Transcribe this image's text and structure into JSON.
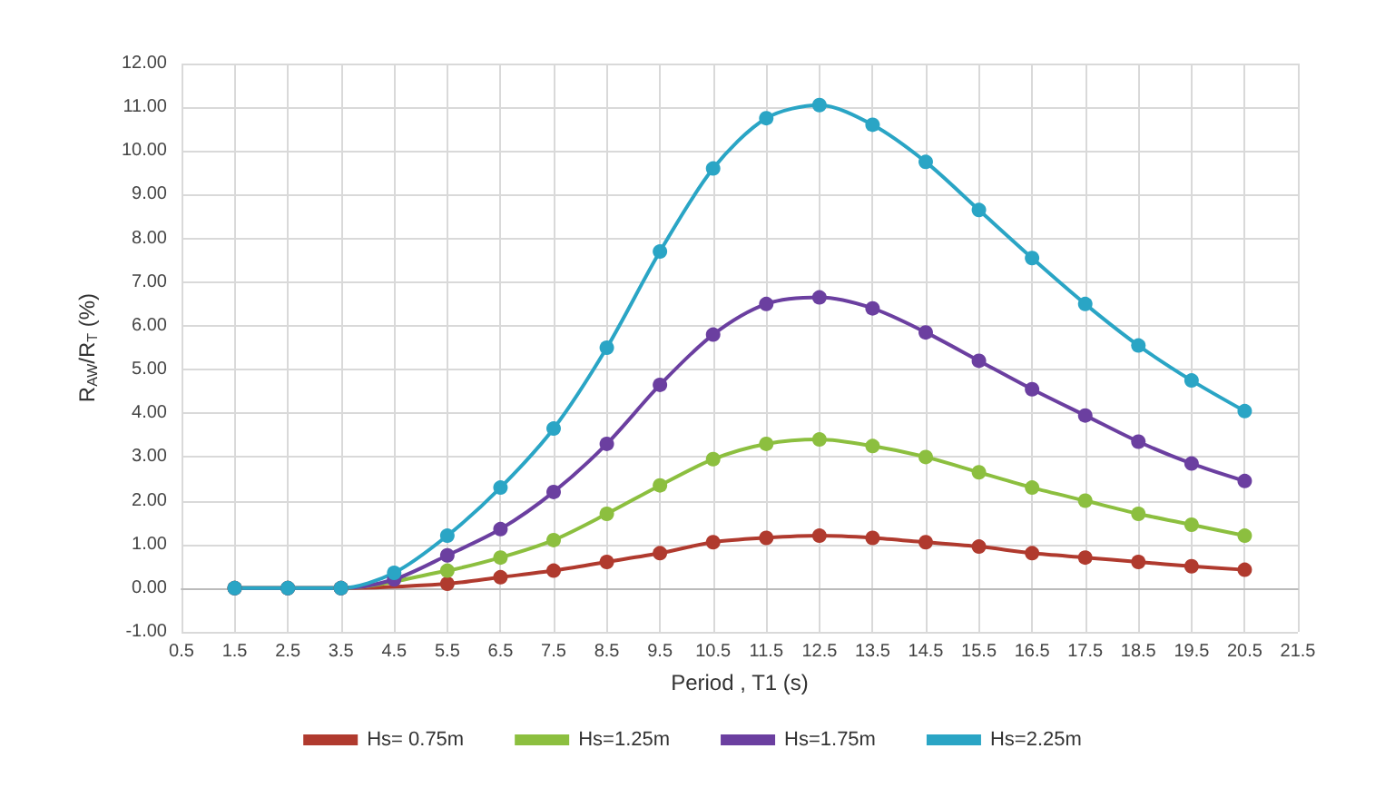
{
  "chart_data": {
    "type": "line",
    "xlabel": "Period , T1 (s)",
    "ylabel": "R$_{AW}$/R$_{T}$ (%)",
    "x": [
      1.5,
      2.5,
      3.5,
      4.5,
      5.5,
      6.5,
      7.5,
      8.5,
      9.5,
      10.5,
      11.5,
      12.5,
      13.5,
      14.5,
      15.5,
      16.5,
      17.5,
      18.5,
      19.5,
      20.5
    ],
    "xlim": [
      0.5,
      21.5
    ],
    "xticks": [
      0.5,
      1.5,
      2.5,
      3.5,
      4.5,
      5.5,
      6.5,
      7.5,
      8.5,
      9.5,
      10.5,
      11.5,
      12.5,
      13.5,
      14.5,
      15.5,
      16.5,
      17.5,
      18.5,
      19.5,
      20.5,
      21.5
    ],
    "ylim": [
      -1,
      12
    ],
    "yticks": [
      {
        "value": -1,
        "label": "-1.00"
      },
      {
        "value": 0,
        "label": "0.00"
      },
      {
        "value": 1,
        "label": "1.00"
      },
      {
        "value": 2,
        "label": "2.00"
      },
      {
        "value": 3,
        "label": "3.00"
      },
      {
        "value": 4,
        "label": "4.00"
      },
      {
        "value": 5,
        "label": "5.00"
      },
      {
        "value": 6,
        "label": "6.00"
      },
      {
        "value": 7,
        "label": "7.00"
      },
      {
        "value": 8,
        "label": "8.00"
      },
      {
        "value": 9,
        "label": "9.00"
      },
      {
        "value": 10,
        "label": "10.00"
      },
      {
        "value": 11,
        "label": "11.00"
      },
      {
        "value": 12,
        "label": "12.00"
      }
    ],
    "grid": true,
    "legend": "bottom",
    "marker": "circle",
    "line_style": "solid",
    "series": [
      {
        "name": "Hs= 0.75m",
        "color": "#b03a2e",
        "values": [
          0,
          0,
          0,
          null,
          0.1,
          0.25,
          0.4,
          0.6,
          0.8,
          1.05,
          1.15,
          1.2,
          1.15,
          1.05,
          0.95,
          0.8,
          0.7,
          0.6,
          0.5,
          0.42
        ]
      },
      {
        "name": "Hs=1.25m",
        "color": "#8cbf3f",
        "values": [
          0,
          0,
          0,
          null,
          0.4,
          0.7,
          1.1,
          1.7,
          2.35,
          2.95,
          3.3,
          3.4,
          3.25,
          3.0,
          2.65,
          2.3,
          2.0,
          1.7,
          1.45,
          1.2
        ]
      },
      {
        "name": "Hs=1.75m",
        "color": "#6b3fa0",
        "values": [
          0,
          0,
          0,
          0.2,
          0.75,
          1.35,
          2.2,
          3.3,
          4.65,
          5.8,
          6.5,
          6.65,
          6.4,
          5.85,
          5.2,
          4.55,
          3.95,
          3.35,
          2.85,
          2.45
        ]
      },
      {
        "name": "Hs=2.25m",
        "color": "#2aa5c5",
        "values": [
          0,
          0,
          0,
          0.35,
          1.2,
          2.3,
          3.65,
          5.5,
          7.7,
          9.6,
          10.75,
          11.05,
          10.6,
          9.75,
          8.65,
          7.55,
          6.5,
          5.55,
          4.75,
          4.05
        ]
      }
    ]
  }
}
